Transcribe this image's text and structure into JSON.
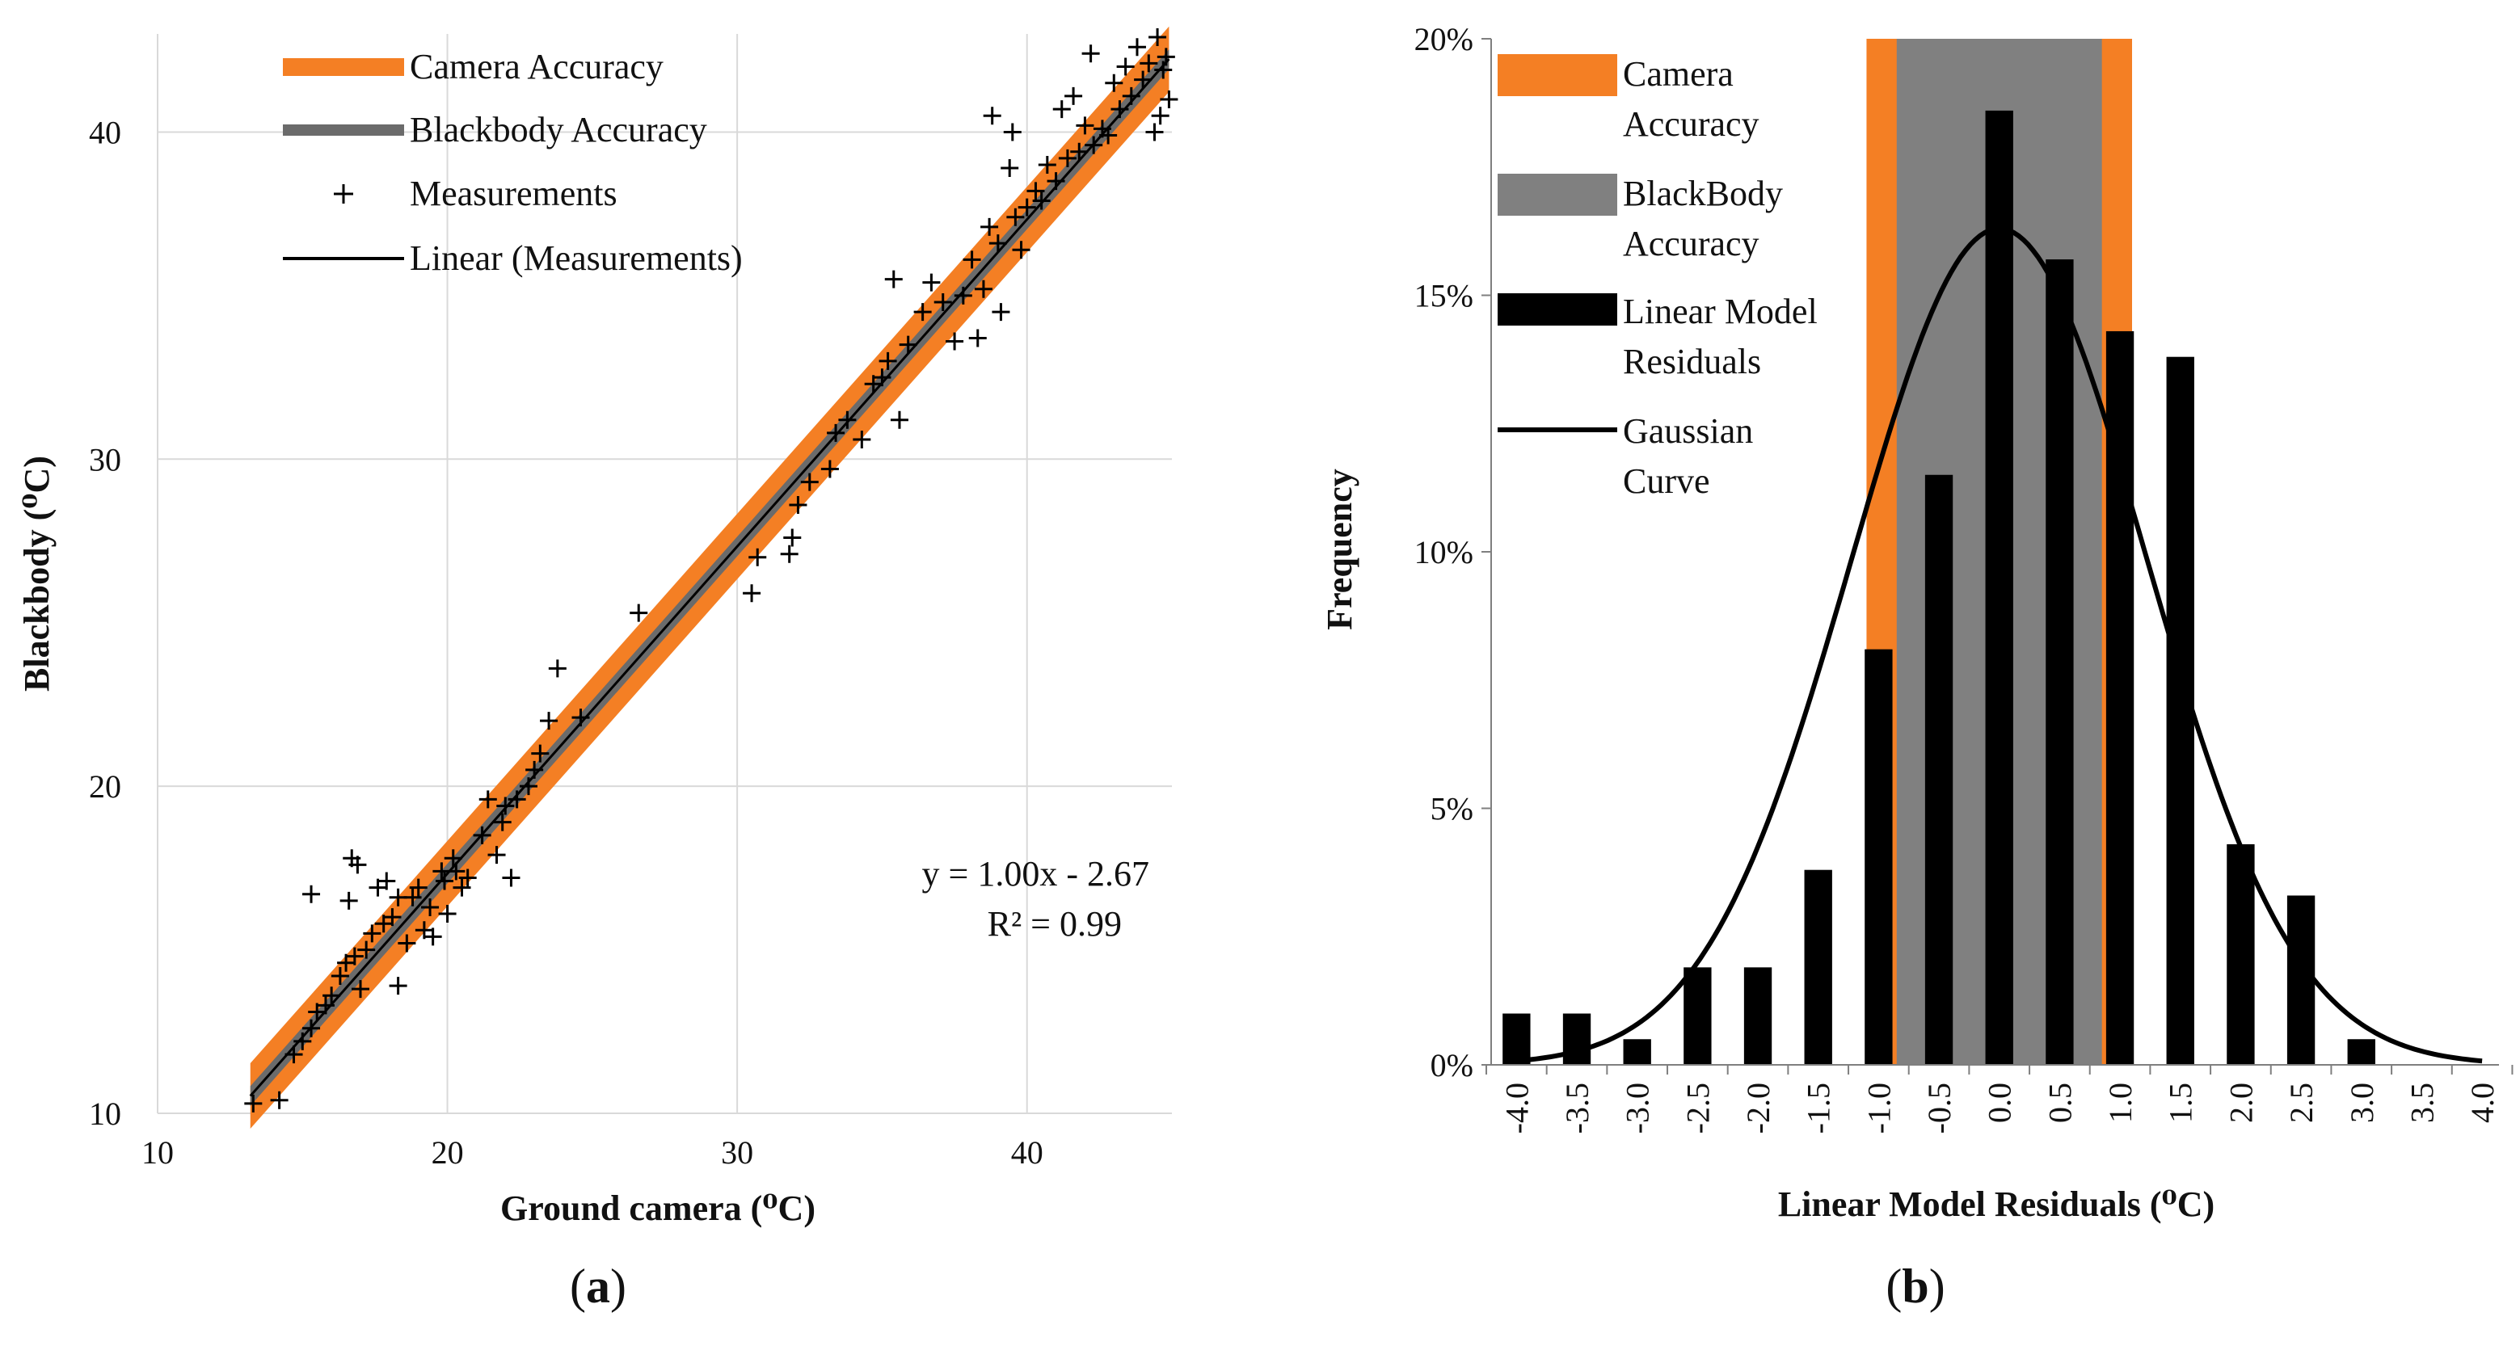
{
  "chart_data": [
    {
      "panel_label": {
        "open": "(",
        "letter": "a",
        "close": ")"
      },
      "type": "scatter",
      "xlabel": "Ground camera (⁰C)",
      "ylabel": "Blackbody (⁰C)",
      "xlim": [
        10,
        45
      ],
      "ylim": [
        10,
        43
      ],
      "xticks": [
        "10",
        "20",
        "30",
        "40"
      ],
      "yticks": [
        "10",
        "20",
        "30",
        "40"
      ],
      "grid": true,
      "legend_position": "top-left",
      "legend": [
        {
          "key": "camera",
          "label": "Camera Accuracy"
        },
        {
          "key": "blackbody",
          "label": "Blackbody Accuracy"
        },
        {
          "key": "measurements",
          "label": "Measurements"
        },
        {
          "key": "linear",
          "label": "Linear (Measurements)"
        }
      ],
      "annotation": {
        "equation": "y = 1.00x - 2.67",
        "r2": "R² = 0.99"
      },
      "fit": {
        "slope": 1.0,
        "intercept": -2.67,
        "x_range": [
          13.2,
          44.9
        ]
      },
      "camera_band": {
        "half_width": 1.0
      },
      "blackbody_band": {
        "half_width": 0.3
      },
      "colors": {
        "camera": "#f47f24",
        "blackbody": "#6b6b6b",
        "measurements": "#000000",
        "linear": "#000000"
      },
      "measurements": [
        [
          13.3,
          10.3
        ],
        [
          14.2,
          10.4
        ],
        [
          14.7,
          11.8
        ],
        [
          15.0,
          12.2
        ],
        [
          15.3,
          12.6
        ],
        [
          15.3,
          16.7
        ],
        [
          15.5,
          13.1
        ],
        [
          15.8,
          13.3
        ],
        [
          16.0,
          13.6
        ],
        [
          16.3,
          14.2
        ],
        [
          16.5,
          14.6
        ],
        [
          16.6,
          16.5
        ],
        [
          16.7,
          17.8
        ],
        [
          16.9,
          17.6
        ],
        [
          16.8,
          14.8
        ],
        [
          17.0,
          13.8
        ],
        [
          17.2,
          15.0
        ],
        [
          17.4,
          15.5
        ],
        [
          17.6,
          16.9
        ],
        [
          17.8,
          15.8
        ],
        [
          17.9,
          17.1
        ],
        [
          18.1,
          16.0
        ],
        [
          18.3,
          13.9
        ],
        [
          18.3,
          16.6
        ],
        [
          18.6,
          15.2
        ],
        [
          18.8,
          16.6
        ],
        [
          19.0,
          16.9
        ],
        [
          19.2,
          15.6
        ],
        [
          19.4,
          16.3
        ],
        [
          19.5,
          15.4
        ],
        [
          19.8,
          17.4
        ],
        [
          19.9,
          17.1
        ],
        [
          20.0,
          16.1
        ],
        [
          20.2,
          17.8
        ],
        [
          20.3,
          17.4
        ],
        [
          20.5,
          16.9
        ],
        [
          20.7,
          17.2
        ],
        [
          21.2,
          18.5
        ],
        [
          21.4,
          19.6
        ],
        [
          21.7,
          17.9
        ],
        [
          21.9,
          18.9
        ],
        [
          22.0,
          19.4
        ],
        [
          22.2,
          17.2
        ],
        [
          22.4,
          19.6
        ],
        [
          22.8,
          20.0
        ],
        [
          23.0,
          20.5
        ],
        [
          23.2,
          21.0
        ],
        [
          23.5,
          22.0
        ],
        [
          23.8,
          23.6
        ],
        [
          24.6,
          22.1
        ],
        [
          26.6,
          25.3
        ],
        [
          30.5,
          25.9
        ],
        [
          30.7,
          27.0
        ],
        [
          31.8,
          27.1
        ],
        [
          31.9,
          27.6
        ],
        [
          32.1,
          28.6
        ],
        [
          32.5,
          29.3
        ],
        [
          33.2,
          29.7
        ],
        [
          33.4,
          30.8
        ],
        [
          33.8,
          31.2
        ],
        [
          34.3,
          30.6
        ],
        [
          34.7,
          32.3
        ],
        [
          35.0,
          32.5
        ],
        [
          35.2,
          33.0
        ],
        [
          35.4,
          35.5
        ],
        [
          35.6,
          31.2
        ],
        [
          35.9,
          33.5
        ],
        [
          36.4,
          34.5
        ],
        [
          36.7,
          35.4
        ],
        [
          37.1,
          34.8
        ],
        [
          37.5,
          33.6
        ],
        [
          37.8,
          35.0
        ],
        [
          38.1,
          36.1
        ],
        [
          38.3,
          33.7
        ],
        [
          38.5,
          35.2
        ],
        [
          38.7,
          37.1
        ],
        [
          38.8,
          40.5
        ],
        [
          39.0,
          36.6
        ],
        [
          39.1,
          34.5
        ],
        [
          39.4,
          38.9
        ],
        [
          39.5,
          40.0
        ],
        [
          39.6,
          37.4
        ],
        [
          39.8,
          36.4
        ],
        [
          40.0,
          37.7
        ],
        [
          40.3,
          38.2
        ],
        [
          40.5,
          37.9
        ],
        [
          40.7,
          39.0
        ],
        [
          41.0,
          38.5
        ],
        [
          41.2,
          40.7
        ],
        [
          41.4,
          39.2
        ],
        [
          41.6,
          41.1
        ],
        [
          41.8,
          39.4
        ],
        [
          42.0,
          40.2
        ],
        [
          42.2,
          42.4
        ],
        [
          42.3,
          39.6
        ],
        [
          42.6,
          40.1
        ],
        [
          42.8,
          39.9
        ],
        [
          43.0,
          41.5
        ],
        [
          43.2,
          40.7
        ],
        [
          43.4,
          42.0
        ],
        [
          43.6,
          41.1
        ],
        [
          43.8,
          42.6
        ],
        [
          44.0,
          41.6
        ],
        [
          44.2,
          42.1
        ],
        [
          44.4,
          40.0
        ],
        [
          44.5,
          42.9
        ],
        [
          44.6,
          40.5
        ],
        [
          44.7,
          41.9
        ],
        [
          44.8,
          42.3
        ],
        [
          44.9,
          41.0
        ]
      ]
    },
    {
      "panel_label": {
        "open": "(",
        "letter": "b",
        "close": ")"
      },
      "type": "bar",
      "xlabel": "Linear Model Residuals (⁰C)",
      "ylabel": "Frequency",
      "categories": [
        "-4.0",
        "-3.5",
        "-3.0",
        "-2.5",
        "-2.0",
        "-1.5",
        "-1.0",
        "-0.5",
        "0.0",
        "0.5",
        "1.0",
        "1.5",
        "2.0",
        "2.5",
        "3.0",
        "3.5",
        "4.0"
      ],
      "values": [
        1.0,
        1.0,
        0.5,
        1.9,
        1.9,
        3.8,
        8.1,
        11.5,
        18.6,
        15.7,
        14.3,
        13.8,
        4.3,
        3.3,
        0.5,
        0.0,
        0.0
      ],
      "ylim": [
        0,
        20
      ],
      "yticks": [
        "0%",
        "5%",
        "10%",
        "15%",
        "20%"
      ],
      "legend_position": "top-left",
      "legend": [
        {
          "key": "camera",
          "line1": "Camera",
          "line2": "Accuracy"
        },
        {
          "key": "blackbody",
          "line1": "BlackBody",
          "line2": "Accuracy"
        },
        {
          "key": "residuals",
          "line1": "Linear Model",
          "line2": "Residuals"
        },
        {
          "key": "gaussian",
          "line1": "Gaussian",
          "line2": "Curve"
        }
      ],
      "camera_band": [
        -1.1,
        1.1
      ],
      "blackbody_band": [
        -0.85,
        0.85
      ],
      "gaussian": {
        "mean": 0.0,
        "sd": 1.22,
        "peak": 16.3
      },
      "colors": {
        "camera": "#f47f24",
        "blackbody": "#808080",
        "residuals": "#000000",
        "gaussian": "#000000"
      }
    }
  ]
}
